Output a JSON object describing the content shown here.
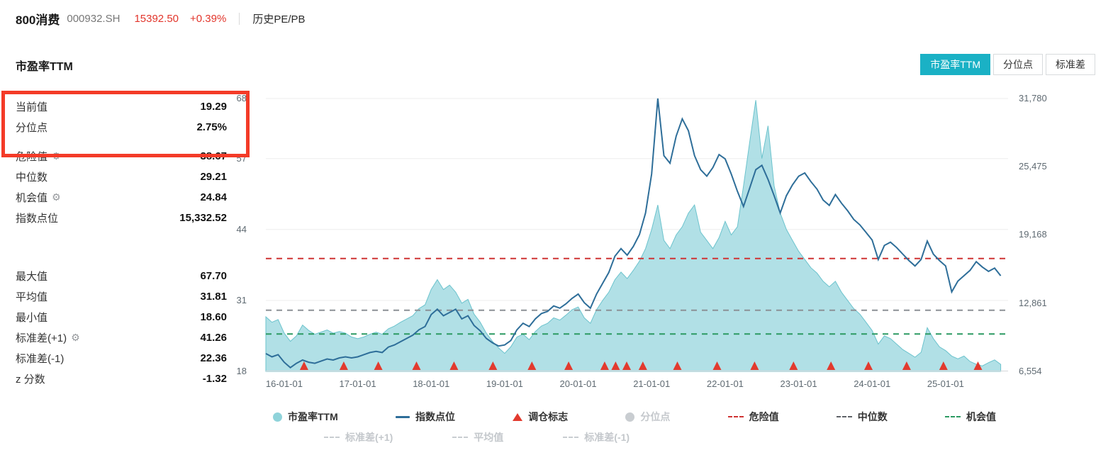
{
  "header": {
    "index_name": "800消费",
    "index_code": "000932.SH",
    "price": "15392.50",
    "change_pct": "+0.39%",
    "nav_link": "历史PE/PB"
  },
  "section": {
    "title": "市盈率TTM",
    "tabs": [
      {
        "key": "tab-pe-ttm",
        "label": "市盈率TTM",
        "active": true
      },
      {
        "key": "tab-percentile",
        "label": "分位点",
        "active": false
      },
      {
        "key": "tab-std",
        "label": "标准差",
        "active": false
      }
    ]
  },
  "stats": {
    "group1": [
      {
        "key": "current-value",
        "label": "当前值",
        "value": "19.29",
        "highlighted": true
      },
      {
        "key": "percentile",
        "label": "分位点",
        "value": "2.75%",
        "highlighted": true,
        "space_after": true
      },
      {
        "key": "danger-value",
        "label": "危险值",
        "value": "38.67",
        "gear": true
      },
      {
        "key": "median",
        "label": "中位数",
        "value": "29.21"
      },
      {
        "key": "chance-value",
        "label": "机会值",
        "value": "24.84",
        "gear": true
      },
      {
        "key": "index-points",
        "label": "指数点位",
        "value": "15,332.52"
      }
    ],
    "group2": [
      {
        "key": "max-value",
        "label": "最大值",
        "value": "67.70"
      },
      {
        "key": "mean-value",
        "label": "平均值",
        "value": "31.81"
      },
      {
        "key": "min-value",
        "label": "最小值",
        "value": "18.60"
      },
      {
        "key": "std-plus1",
        "label": "标准差(+1)",
        "value": "41.26",
        "gear": true
      },
      {
        "key": "std-minus1",
        "label": "标准差(-1)",
        "value": "22.36"
      },
      {
        "key": "z-score",
        "label": "z 分数",
        "value": "-1.32"
      }
    ]
  },
  "colors": {
    "accent_teal": "#1ab1c5",
    "area_fill": "#a9dde3",
    "area_stroke": "#6cc3cd",
    "line_blue": "#2e6e99",
    "red": "#e2352b",
    "danger_line": "#cf3333",
    "median_line": "#8c9196",
    "chance_line": "#2c9a62",
    "highlight_border": "#f43b28"
  },
  "chart_data": {
    "type": "area",
    "title": "市盈率TTM",
    "x_start": 2015.75,
    "x_step": 0.0833333,
    "x_domain": [
      2015.75,
      2025.85
    ],
    "x_ticks": [
      {
        "pos": 2016,
        "label": "16-01-01"
      },
      {
        "pos": 2017,
        "label": "17-01-01"
      },
      {
        "pos": 2018,
        "label": "18-01-01"
      },
      {
        "pos": 2019,
        "label": "19-01-01"
      },
      {
        "pos": 2020,
        "label": "20-01-01"
      },
      {
        "pos": 2021,
        "label": "21-01-01"
      },
      {
        "pos": 2022,
        "label": "22-01-01"
      },
      {
        "pos": 2023,
        "label": "23-01-01"
      },
      {
        "pos": 2024,
        "label": "24-01-01"
      },
      {
        "pos": 2025,
        "label": "25-01-01"
      }
    ],
    "left_axis": {
      "range": [
        18,
        68
      ],
      "ticks": [
        {
          "value": 18,
          "label": "18"
        },
        {
          "value": 31,
          "label": "31"
        },
        {
          "value": 44,
          "label": "44"
        },
        {
          "value": 57,
          "label": "57"
        },
        {
          "value": 68,
          "label": "68"
        }
      ]
    },
    "right_axis": {
      "range": [
        6554,
        31780
      ],
      "ticks": [
        {
          "value": 6554,
          "label": "6,554"
        },
        {
          "value": 12861,
          "label": "12,861"
        },
        {
          "value": 19168,
          "label": "19,168"
        },
        {
          "value": 25475,
          "label": "25,475"
        },
        {
          "value": 31780,
          "label": "31,780"
        }
      ]
    },
    "series": [
      {
        "name": "市盈率TTM",
        "kind": "area",
        "axis": "left",
        "color": "#6cc3cd",
        "fill": "#a9dde3",
        "values": [
          28,
          27,
          27.5,
          25,
          23.5,
          24.5,
          26.5,
          25.5,
          24.8,
          25.2,
          25.6,
          25,
          25.3,
          25,
          24.3,
          24,
          24.3,
          24.8,
          25.2,
          24.8,
          25.8,
          26.3,
          27,
          27.6,
          28.2,
          29.5,
          30.2,
          33,
          34.8,
          33,
          33.8,
          32.5,
          30.5,
          31.2,
          28.5,
          27,
          25,
          23.5,
          22.3,
          21.3,
          22.5,
          24.3,
          24.8,
          23.8,
          25.3,
          26.3,
          26.8,
          27.8,
          27.4,
          28.3,
          29.3,
          29.8,
          27.8,
          26.8,
          29.3,
          31,
          32.5,
          34.8,
          36.2,
          35,
          36.5,
          38.2,
          40.5,
          44,
          48.5,
          42,
          40.5,
          43,
          44.5,
          47,
          48.5,
          43.5,
          42,
          40.5,
          42.5,
          45.5,
          43,
          44.5,
          52,
          60,
          67.7,
          57,
          63,
          52,
          47,
          44,
          42,
          40,
          38.5,
          37,
          36,
          34.5,
          33.5,
          34.5,
          32.5,
          31,
          29.5,
          28.5,
          27,
          25.5,
          23,
          24.5,
          24,
          23,
          22,
          21.3,
          20.6,
          21.5,
          26,
          24,
          22.5,
          21.8,
          20.8,
          20.3,
          20.8,
          19.8,
          19.3,
          19,
          19.6,
          20.1,
          19.29
        ]
      },
      {
        "name": "指数点位",
        "kind": "line",
        "axis": "right",
        "color": "#2e6e99",
        "values": [
          8200,
          7900,
          8100,
          7400,
          6900,
          7300,
          7600,
          7400,
          7300,
          7500,
          7700,
          7600,
          7800,
          7900,
          7800,
          7900,
          8100,
          8300,
          8400,
          8300,
          8800,
          9000,
          9300,
          9600,
          9900,
          10400,
          10700,
          11800,
          12300,
          11700,
          12000,
          12300,
          11400,
          11700,
          10800,
          10300,
          9600,
          9200,
          8900,
          9000,
          9400,
          10400,
          11000,
          10700,
          11400,
          11900,
          12100,
          12600,
          12400,
          12800,
          13300,
          13700,
          12900,
          12400,
          13700,
          14700,
          15700,
          17200,
          17900,
          17300,
          18100,
          19200,
          21200,
          24800,
          31780,
          26500,
          25800,
          28300,
          29900,
          28800,
          26500,
          25200,
          24600,
          25400,
          26600,
          26200,
          24800,
          23200,
          21800,
          23500,
          25200,
          25600,
          24300,
          22800,
          21200,
          22800,
          23800,
          24600,
          24900,
          24100,
          23400,
          22400,
          21900,
          22900,
          22100,
          21400,
          20600,
          20100,
          19400,
          18700,
          16900,
          18200,
          18500,
          18000,
          17400,
          16800,
          16300,
          16900,
          18600,
          17400,
          16800,
          16300,
          13900,
          14900,
          15400,
          15900,
          16700,
          16200,
          15800,
          16100,
          15392
        ]
      }
    ],
    "reference_lines": [
      {
        "name": "危险值",
        "value": 38.67,
        "color": "#cf3333",
        "style": "dashed"
      },
      {
        "name": "中位数",
        "value": 29.21,
        "color": "#8c9196",
        "style": "dashed"
      },
      {
        "name": "机会值",
        "value": 24.84,
        "color": "#2c9a62",
        "style": "dashed"
      }
    ],
    "markers": {
      "name": "调仓标志",
      "color": "#e23a2e",
      "positions": [
        2016.27,
        2016.81,
        2017.28,
        2017.8,
        2018.31,
        2018.84,
        2019.37,
        2019.87,
        2020.36,
        2020.51,
        2020.66,
        2020.88,
        2021.35,
        2021.89,
        2022.4,
        2022.93,
        2023.44,
        2023.95,
        2024.47,
        2024.97,
        2025.44
      ]
    }
  },
  "legend": {
    "rows": [
      [
        {
          "key": "legend-pe-ttm",
          "label": "市盈率TTM",
          "marker": "circle",
          "color": "#8fd3da",
          "disabled": false
        },
        {
          "key": "legend-index-points",
          "label": "指数点位",
          "marker": "line",
          "color": "#2e6e99",
          "disabled": false
        },
        {
          "key": "legend-rebalance",
          "label": "调仓标志",
          "marker": "triangle",
          "color": "#e23a2e",
          "disabled": false
        },
        {
          "key": "legend-percentile",
          "label": "分位点",
          "marker": "circle",
          "color": "#c9cdd1",
          "disabled": true
        },
        {
          "key": "legend-danger",
          "label": "危险值",
          "marker": "dash",
          "color": "#cf3333",
          "disabled": false
        },
        {
          "key": "legend-median",
          "label": "中位数",
          "marker": "dash",
          "color": "#5f6368",
          "disabled": false
        },
        {
          "key": "legend-chance",
          "label": "机会值",
          "marker": "dash",
          "color": "#2c9a62",
          "disabled": false
        }
      ],
      [
        {
          "key": "legend-std-plus1",
          "label": "标准差(+1)",
          "marker": "dash",
          "color": "#c9cdd1",
          "disabled": true
        },
        {
          "key": "legend-mean",
          "label": "平均值",
          "marker": "dash",
          "color": "#c9cdd1",
          "disabled": true
        },
        {
          "key": "legend-std-minus1",
          "label": "标准差(-1)",
          "marker": "dash",
          "color": "#c9cdd1",
          "disabled": true
        }
      ]
    ]
  }
}
